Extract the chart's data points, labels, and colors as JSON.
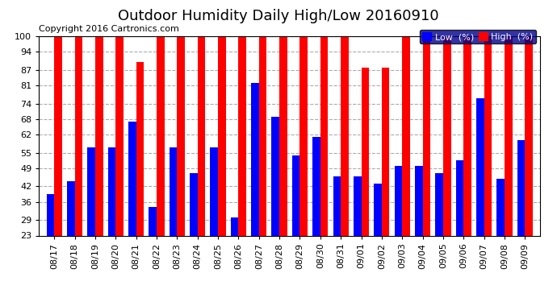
{
  "title": "Outdoor Humidity Daily High/Low 20160910",
  "copyright": "Copyright 2016 Cartronics.com",
  "legend_low": "Low  (%)",
  "legend_high": "High  (%)",
  "dates": [
    "08/17",
    "08/18",
    "08/19",
    "08/20",
    "08/21",
    "08/22",
    "08/23",
    "08/24",
    "08/25",
    "08/26",
    "08/27",
    "08/28",
    "08/29",
    "08/30",
    "08/31",
    "09/01",
    "09/02",
    "09/03",
    "09/04",
    "09/05",
    "09/06",
    "09/07",
    "09/08",
    "09/09"
  ],
  "highs": [
    100,
    100,
    100,
    100,
    90,
    100,
    100,
    100,
    100,
    100,
    100,
    100,
    100,
    100,
    100,
    88,
    88,
    100,
    100,
    100,
    100,
    100,
    100,
    100
  ],
  "lows": [
    39,
    44,
    57,
    57,
    67,
    34,
    57,
    47,
    57,
    30,
    82,
    69,
    54,
    61,
    46,
    46,
    43,
    50,
    50,
    47,
    52,
    76,
    45,
    60
  ],
  "ylim_min": 23,
  "ylim_max": 100,
  "yticks": [
    23,
    29,
    36,
    42,
    49,
    55,
    62,
    68,
    74,
    81,
    87,
    94,
    100
  ],
  "high_color": "#FF0000",
  "low_color": "#0000FF",
  "bg_color": "#FFFFFF",
  "grid_color": "#AAAAAA",
  "title_fontsize": 13,
  "copyright_fontsize": 8,
  "tick_fontsize": 8,
  "legend_bg": "#00008B",
  "legend_text_color": "#FFFFFF"
}
